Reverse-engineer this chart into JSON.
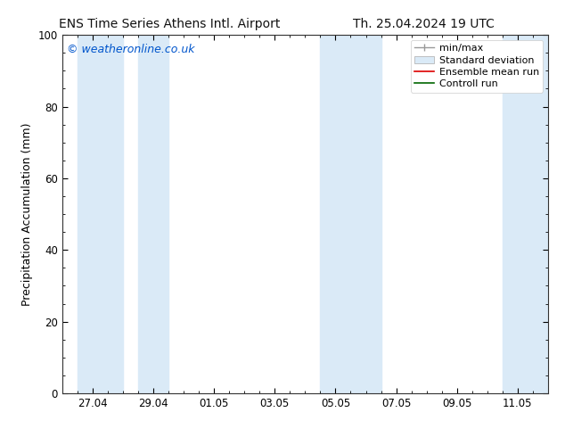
{
  "title_left": "ENS Time Series Athens Intl. Airport",
  "title_right": "Th. 25.04.2024 19 UTC",
  "ylabel": "Precipitation Accumulation (mm)",
  "watermark": "© weatheronline.co.uk",
  "watermark_color": "#0055cc",
  "ylim": [
    0,
    100
  ],
  "yticks": [
    0,
    20,
    40,
    60,
    80,
    100
  ],
  "background_color": "#ffffff",
  "plot_bg_color": "#ffffff",
  "shaded_band_color": "#daeaf7",
  "xlim": [
    0,
    16
  ],
  "xtick_labels": [
    "27.04",
    "29.04",
    "01.05",
    "03.05",
    "05.05",
    "07.05",
    "09.05",
    "11.05"
  ],
  "xtick_positions": [
    1,
    3,
    5,
    7,
    9,
    11,
    13,
    15
  ],
  "shaded_regions": [
    {
      "start": 0.5,
      "end": 2.0
    },
    {
      "start": 2.5,
      "end": 3.5
    },
    {
      "start": 8.5,
      "end": 10.5
    },
    {
      "start": 14.5,
      "end": 16.0
    }
  ],
  "title_fontsize": 10,
  "axis_label_fontsize": 9,
  "tick_fontsize": 8.5,
  "watermark_fontsize": 9,
  "legend_fontsize": 8
}
